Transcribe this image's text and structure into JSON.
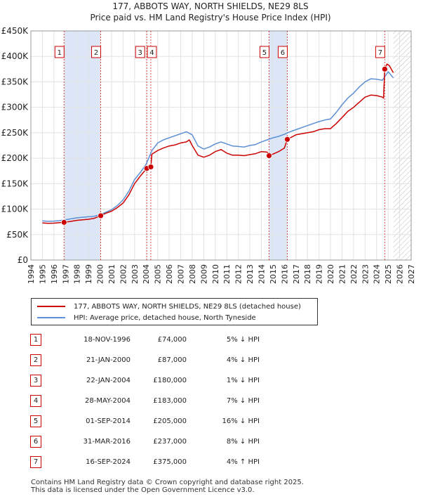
{
  "title_line1": "177, ABBOTS WAY, NORTH SHIELDS, NE29 8LS",
  "title_line2": "Price paid vs. HM Land Registry's House Price Index (HPI)",
  "chart_data": {
    "type": "line",
    "title": "177, ABBOTS WAY, NORTH SHIELDS, NE29 8LS — Price paid vs. HM Land Registry's House Price Index (HPI)",
    "xlabel": "",
    "ylabel": "",
    "xlim": [
      1994,
      2027
    ],
    "ylim": [
      0,
      450000
    ],
    "x_ticks": [
      1994,
      1995,
      1996,
      1997,
      1998,
      1999,
      2000,
      2001,
      2002,
      2003,
      2004,
      2005,
      2006,
      2007,
      2008,
      2009,
      2010,
      2011,
      2012,
      2013,
      2014,
      2015,
      2016,
      2017,
      2018,
      2019,
      2020,
      2021,
      2022,
      2023,
      2024,
      2025,
      2026,
      2027
    ],
    "y_ticks": [
      0,
      50000,
      100000,
      150000,
      200000,
      250000,
      300000,
      350000,
      400000,
      450000
    ],
    "y_tick_labels": [
      "£0",
      "£50K",
      "£100K",
      "£150K",
      "£200K",
      "£250K",
      "£300K",
      "£350K",
      "£400K",
      "£450K"
    ],
    "grid": true,
    "colors": {
      "property": "#cc0000",
      "hpi": "#5b8fd6",
      "shade": "#dce6f7",
      "marker_border": "#cc0000",
      "future_hatch": "#bbbbbb"
    },
    "shaded_periods": [
      [
        1996.88,
        2000.06
      ],
      [
        2014.67,
        2016.25
      ]
    ],
    "future_from": 2025.45,
    "series": [
      {
        "name": "177, ABBOTS WAY, NORTH SHIELDS, NE29 8LS (detached house)",
        "color": "#cc0000",
        "x": [
          1995.0,
          1995.5,
          1996.0,
          1996.5,
          1996.88,
          1997.5,
          1998.0,
          1998.5,
          1999.0,
          1999.5,
          2000.06,
          2000.5,
          2001.0,
          2001.5,
          2002.0,
          2002.5,
          2003.0,
          2003.5,
          2004.06,
          2004.41,
          2004.5,
          2005.0,
          2005.5,
          2006.0,
          2006.5,
          2007.0,
          2007.5,
          2007.75,
          2008.0,
          2008.5,
          2009.0,
          2009.5,
          2010.0,
          2010.5,
          2011.0,
          2011.5,
          2012.0,
          2012.5,
          2013.0,
          2013.5,
          2014.0,
          2014.5,
          2014.67,
          2015.0,
          2015.5,
          2016.0,
          2016.25,
          2016.5,
          2017.0,
          2017.5,
          2018.0,
          2018.5,
          2019.0,
          2019.5,
          2020.0,
          2020.5,
          2021.0,
          2021.5,
          2022.0,
          2022.5,
          2023.0,
          2023.5,
          2024.0,
          2024.5,
          2024.6,
          2024.71,
          2024.9,
          2025.1,
          2025.3,
          2025.45
        ],
        "y": [
          73000,
          72000,
          72500,
          73500,
          74000,
          76000,
          78000,
          79000,
          80000,
          82000,
          87000,
          92000,
          96000,
          103000,
          112000,
          128000,
          150000,
          165000,
          180000,
          183000,
          208000,
          215000,
          220000,
          224000,
          226000,
          230000,
          232000,
          236000,
          225000,
          206000,
          202000,
          206000,
          213000,
          217000,
          210000,
          206000,
          206000,
          205000,
          207000,
          209000,
          213000,
          212000,
          205000,
          208000,
          213000,
          220000,
          237000,
          240000,
          246000,
          248000,
          250000,
          252000,
          256000,
          258000,
          258000,
          268000,
          280000,
          292000,
          300000,
          310000,
          320000,
          324000,
          323000,
          320000,
          318000,
          375000,
          385000,
          382000,
          374000,
          368000
        ]
      },
      {
        "name": "HPI: Average price, detached house, North Tyneside",
        "color": "#5b8fd6",
        "x": [
          1995.0,
          1995.5,
          1996.0,
          1996.5,
          1997.0,
          1997.5,
          1998.0,
          1998.5,
          1999.0,
          1999.5,
          2000.0,
          2000.5,
          2001.0,
          2001.5,
          2002.0,
          2002.5,
          2003.0,
          2003.5,
          2004.0,
          2004.5,
          2005.0,
          2005.5,
          2006.0,
          2006.5,
          2007.0,
          2007.5,
          2008.0,
          2008.5,
          2009.0,
          2009.5,
          2010.0,
          2010.5,
          2011.0,
          2011.5,
          2012.0,
          2012.5,
          2013.0,
          2013.5,
          2014.0,
          2014.5,
          2015.0,
          2015.5,
          2016.0,
          2016.5,
          2017.0,
          2017.5,
          2018.0,
          2018.5,
          2019.0,
          2019.5,
          2020.0,
          2020.5,
          2021.0,
          2021.5,
          2022.0,
          2022.5,
          2023.0,
          2023.5,
          2024.0,
          2024.5,
          2025.0,
          2025.3,
          2025.45
        ],
        "y": [
          77000,
          76000,
          76500,
          77500,
          79000,
          81000,
          83000,
          84000,
          85000,
          86000,
          89000,
          94000,
          99000,
          107000,
          118000,
          135000,
          158000,
          172000,
          188000,
          215000,
          230000,
          236000,
          240000,
          244000,
          248000,
          252000,
          246000,
          224000,
          218000,
          222000,
          228000,
          232000,
          228000,
          224000,
          223000,
          222000,
          225000,
          227000,
          232000,
          236000,
          240000,
          243000,
          247000,
          252000,
          256000,
          260000,
          264000,
          268000,
          272000,
          275000,
          277000,
          290000,
          305000,
          318000,
          328000,
          340000,
          350000,
          356000,
          355000,
          353000,
          370000,
          362000,
          358000
        ]
      }
    ],
    "sale_points": [
      {
        "label": "1",
        "x": 1996.88,
        "y": 74000
      },
      {
        "label": "2",
        "x": 2000.06,
        "y": 87000
      },
      {
        "label": "3",
        "x": 2004.06,
        "y": 180000
      },
      {
        "label": "4",
        "x": 2004.41,
        "y": 183000
      },
      {
        "label": "5",
        "x": 2014.67,
        "y": 205000
      },
      {
        "label": "6",
        "x": 2016.25,
        "y": 237000
      },
      {
        "label": "7",
        "x": 2024.71,
        "y": 375000
      }
    ]
  },
  "legend": {
    "property_label": "177, ABBOTS WAY, NORTH SHIELDS, NE29 8LS (detached house)",
    "hpi_label": "HPI: Average price, detached house, North Tyneside"
  },
  "sales": [
    {
      "num": "1",
      "date": "18-NOV-1996",
      "price": "£74,000",
      "hpi": "5% ↓ HPI"
    },
    {
      "num": "2",
      "date": "21-JAN-2000",
      "price": "£87,000",
      "hpi": "4% ↓ HPI"
    },
    {
      "num": "3",
      "date": "22-JAN-2004",
      "price": "£180,000",
      "hpi": "1% ↓ HPI"
    },
    {
      "num": "4",
      "date": "28-MAY-2004",
      "price": "£183,000",
      "hpi": "7% ↓ HPI"
    },
    {
      "num": "5",
      "date": "01-SEP-2014",
      "price": "£205,000",
      "hpi": "16% ↓ HPI"
    },
    {
      "num": "6",
      "date": "31-MAR-2016",
      "price": "£237,000",
      "hpi": "8% ↓ HPI"
    },
    {
      "num": "7",
      "date": "16-SEP-2024",
      "price": "£375,000",
      "hpi": "4% ↑ HPI"
    }
  ],
  "footer": {
    "line1": "Contains HM Land Registry data © Crown copyright and database right 2025.",
    "line2": "This data is licensed under the Open Government Licence v3.0."
  }
}
